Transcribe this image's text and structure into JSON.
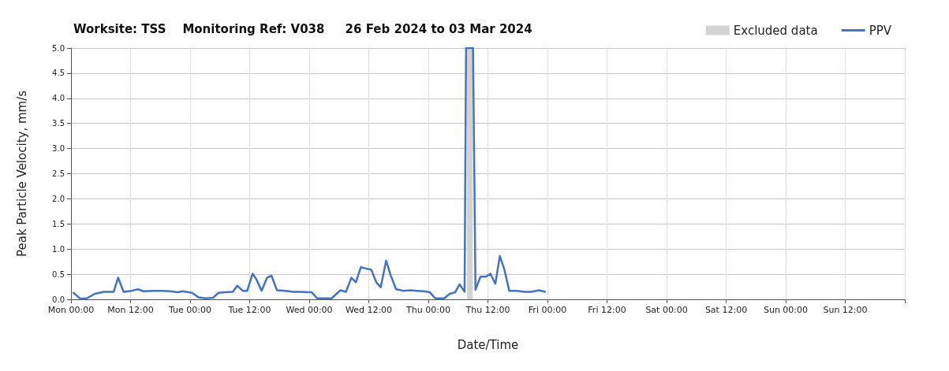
{
  "chart_data": {
    "type": "line",
    "title": "Worksite: TSS    Monitoring Ref: V038     26 Feb 2024 to 03 Mar 2024",
    "xlabel": "Date/Time",
    "ylabel": "Peak Particle Velocity, mm/s",
    "xlim": [
      "2024-02-26T00:00",
      "2024-03-04T00:00"
    ],
    "xticks": [
      {
        "value": "2024-02-26T00:00",
        "label": "Mon 00:00"
      },
      {
        "value": "2024-02-26T12:00",
        "label": "Mon 12:00"
      },
      {
        "value": "2024-02-27T00:00",
        "label": "Tue 00:00"
      },
      {
        "value": "2024-02-27T12:00",
        "label": "Tue 12:00"
      },
      {
        "value": "2024-02-28T00:00",
        "label": "Wed 00:00"
      },
      {
        "value": "2024-02-28T12:00",
        "label": "Wed 12:00"
      },
      {
        "value": "2024-02-29T00:00",
        "label": "Thu 00:00"
      },
      {
        "value": "2024-02-29T12:00",
        "label": "Thu 12:00"
      },
      {
        "value": "2024-03-01T00:00",
        "label": "Fri 00:00"
      },
      {
        "value": "2024-03-01T12:00",
        "label": "Fri 12:00"
      },
      {
        "value": "2024-03-02T00:00",
        "label": "Sat 00:00"
      },
      {
        "value": "2024-03-02T12:00",
        "label": "Sat 12:00"
      },
      {
        "value": "2024-03-03T00:00",
        "label": "Sun 00:00"
      },
      {
        "value": "2024-03-03T12:00",
        "label": "Sun 12:00"
      },
      {
        "value": "2024-03-04T00:00",
        "label": null
      }
    ],
    "ylim": [
      0,
      5
    ],
    "yticks": [
      {
        "value": 0,
        "label": "0.0"
      },
      {
        "value": 0.5,
        "label": "0.5"
      },
      {
        "value": 1,
        "label": "1.0"
      },
      {
        "value": 1.5,
        "label": "1.5"
      },
      {
        "value": 2,
        "label": "2.0"
      },
      {
        "value": 2.5,
        "label": "2.5"
      },
      {
        "value": 3,
        "label": "3.0"
      },
      {
        "value": 3.5,
        "label": "3.5"
      },
      {
        "value": 4,
        "label": "4.0"
      },
      {
        "value": 4.5,
        "label": "4.5"
      },
      {
        "value": 5,
        "label": "5.0"
      }
    ],
    "grid": true,
    "legend": "top right",
    "marker": "none",
    "line_style": "solid",
    "bands": [
      {
        "axis": "x",
        "from": "2024-02-29T07:48",
        "to": "2024-02-29T08:54",
        "label": "Excluded data",
        "color": "#d3d3d3"
      }
    ],
    "series": [
      {
        "name": "PPV",
        "color": "#4472c4",
        "x": [
          "2024-02-26T00:30",
          "2024-02-26T01:54",
          "2024-02-26T03:12",
          "2024-02-26T04:48",
          "2024-02-26T06:36",
          "2024-02-26T08:36",
          "2024-02-26T09:30",
          "2024-02-26T10:36",
          "2024-02-26T12:12",
          "2024-02-26T13:30",
          "2024-02-26T14:36",
          "2024-02-26T16:42",
          "2024-02-26T18:18",
          "2024-02-26T19:54",
          "2024-02-26T21:30",
          "2024-02-26T22:30",
          "2024-02-27T00:24",
          "2024-02-27T01:42",
          "2024-02-27T03:00",
          "2024-02-27T04:36",
          "2024-02-27T05:42",
          "2024-02-27T07:00",
          "2024-02-27T08:36",
          "2024-02-27T09:30",
          "2024-02-27T10:36",
          "2024-02-27T11:30",
          "2024-02-27T12:36",
          "2024-02-27T13:24",
          "2024-02-27T14:24",
          "2024-02-27T15:30",
          "2024-02-27T16:24",
          "2024-02-27T17:30",
          "2024-02-27T19:12",
          "2024-02-27T20:48",
          "2024-02-27T22:24",
          "2024-02-27T23:42",
          "2024-02-28T00:30",
          "2024-02-28T01:36",
          "2024-02-28T03:42",
          "2024-02-28T04:30",
          "2024-02-28T06:18",
          "2024-02-28T07:24",
          "2024-02-28T08:30",
          "2024-02-28T09:24",
          "2024-02-28T10:24",
          "2024-02-28T11:30",
          "2024-02-28T12:30",
          "2024-02-28T13:30",
          "2024-02-28T14:24",
          "2024-02-28T15:30",
          "2024-02-28T16:24",
          "2024-02-28T17:30",
          "2024-02-28T19:00",
          "2024-02-28T20:24",
          "2024-02-28T21:42",
          "2024-02-28T23:00",
          "2024-02-29T00:18",
          "2024-02-29T01:24",
          "2024-02-29T03:12",
          "2024-02-29T04:18",
          "2024-02-29T05:24",
          "2024-02-29T06:18",
          "2024-02-29T07:18",
          "2024-02-29T07:36",
          "2024-02-29T09:00",
          "2024-02-29T09:30",
          "2024-02-29T10:30",
          "2024-02-29T11:36",
          "2024-02-29T12:30",
          "2024-02-29T13:30",
          "2024-02-29T14:24",
          "2024-02-29T15:18",
          "2024-02-29T16:18",
          "2024-02-29T17:48",
          "2024-02-29T19:24",
          "2024-02-29T20:42",
          "2024-02-29T22:18",
          "2024-02-29T23:30"
        ],
        "values": [
          0.13,
          0.01,
          0.02,
          0.11,
          0.15,
          0.15,
          0.43,
          0.15,
          0.17,
          0.2,
          0.16,
          0.17,
          0.17,
          0.16,
          0.14,
          0.16,
          0.13,
          0.04,
          0.02,
          0.03,
          0.13,
          0.14,
          0.15,
          0.27,
          0.17,
          0.17,
          0.51,
          0.39,
          0.17,
          0.43,
          0.47,
          0.18,
          0.17,
          0.15,
          0.15,
          0.14,
          0.14,
          0.02,
          0.02,
          0.02,
          0.18,
          0.15,
          0.43,
          0.34,
          0.64,
          0.61,
          0.59,
          0.34,
          0.24,
          0.77,
          0.48,
          0.2,
          0.17,
          0.18,
          0.17,
          0.16,
          0.14,
          0.02,
          0.02,
          0.11,
          0.14,
          0.3,
          0.15,
          5.0,
          5.0,
          0.19,
          0.45,
          0.45,
          0.51,
          0.31,
          0.86,
          0.6,
          0.17,
          0.17,
          0.15,
          0.15,
          0.18,
          0.15
        ]
      }
    ]
  }
}
